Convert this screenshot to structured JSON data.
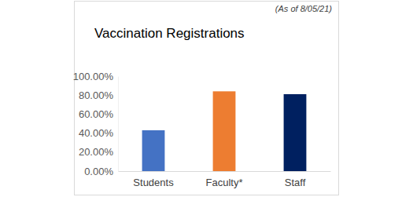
{
  "chart_data": {
    "type": "bar",
    "title": "Vaccination Registrations",
    "subtitle": "(As of 8/05/21)",
    "categories": [
      "Students",
      "Faculty*",
      "Staff"
    ],
    "values": [
      43,
      84,
      81
    ],
    "colors": [
      "#4472c4",
      "#ed7d31",
      "#002060"
    ],
    "ylim": [
      0,
      100
    ],
    "yticks": [
      {
        "value": 0,
        "label": "0.00%"
      },
      {
        "value": 20,
        "label": "20.00%"
      },
      {
        "value": 40,
        "label": "40.00%"
      },
      {
        "value": 60,
        "label": "60.00%"
      },
      {
        "value": 80,
        "label": "80.00%"
      },
      {
        "value": 100,
        "label": "100.00%"
      }
    ],
    "grid": false
  }
}
